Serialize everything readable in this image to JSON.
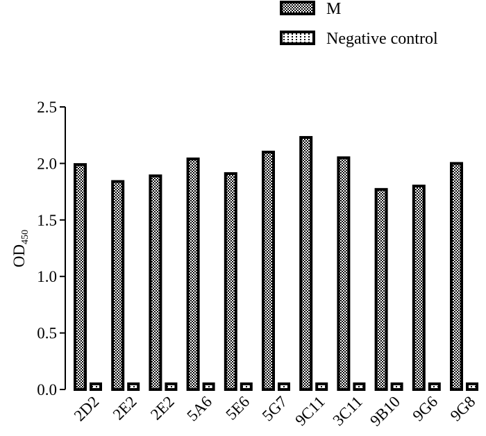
{
  "chart_data": {
    "type": "bar",
    "categories": [
      "2D2",
      "2E2",
      "2E2",
      "5A6",
      "5E6",
      "5G7",
      "9C11",
      "3C11",
      "9B10",
      "9G6",
      "9G8"
    ],
    "series": [
      {
        "name": "M",
        "values": [
          1.99,
          1.84,
          1.89,
          2.04,
          1.91,
          2.1,
          2.23,
          2.05,
          1.77,
          1.8,
          2.0
        ]
      },
      {
        "name": "Negative control",
        "values": [
          0.05,
          0.05,
          0.05,
          0.05,
          0.05,
          0.05,
          0.05,
          0.05,
          0.05,
          0.05,
          0.05
        ]
      }
    ],
    "ylabel_main": "OD",
    "ylabel_sub": "450",
    "ylim": [
      0,
      2.5
    ],
    "yticks": [
      "0.0",
      "0.5",
      "1.0",
      "1.5",
      "2.0",
      "2.5"
    ],
    "legend_position": "top-right",
    "grid": false,
    "colors": {
      "bar_fill": "#000000",
      "pattern": "#ffffff"
    }
  }
}
